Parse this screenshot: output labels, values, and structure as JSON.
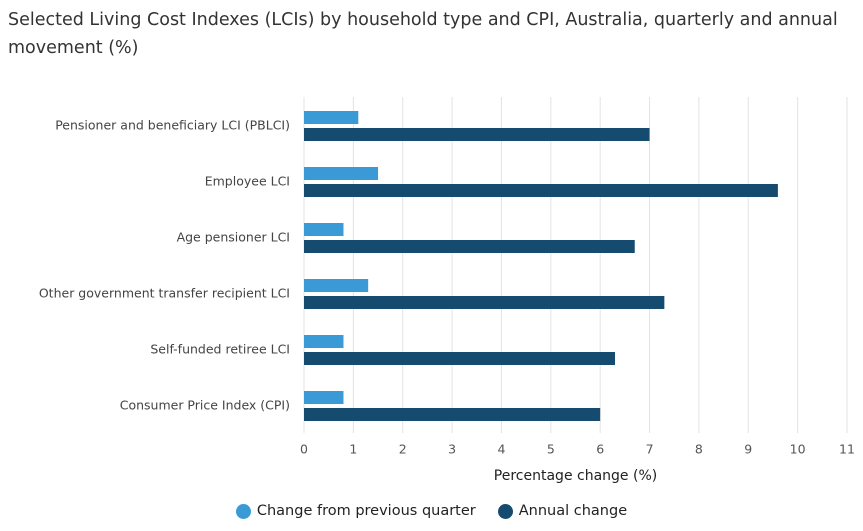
{
  "chart_data": {
    "type": "hbar",
    "title": "Selected Living Cost Indexes (LCIs) by household type and CPI, Australia, quarterly and annual movement (%)",
    "categories": [
      "Pensioner and beneficiary LCI (PBLCI)",
      "Employee LCI",
      "Age pensioner LCI",
      "Other government transfer recipient LCI",
      "Self-funded retiree LCI",
      "Consumer Price Index (CPI)"
    ],
    "series": [
      {
        "name": "Change from previous quarter",
        "color": "#3a9ad5",
        "values": [
          1.1,
          1.5,
          0.8,
          1.3,
          0.8,
          0.8
        ]
      },
      {
        "name": "Annual change",
        "color": "#144b6f",
        "values": [
          7.0,
          9.6,
          6.7,
          7.3,
          6.3,
          6.0
        ]
      }
    ],
    "x_label": "Percentage change (%)",
    "xlim": [
      0,
      11
    ],
    "xticks": [
      0,
      1,
      2,
      3,
      4,
      5,
      6,
      7,
      8,
      9,
      10,
      11
    ],
    "grid": true,
    "legend": "bottom"
  }
}
